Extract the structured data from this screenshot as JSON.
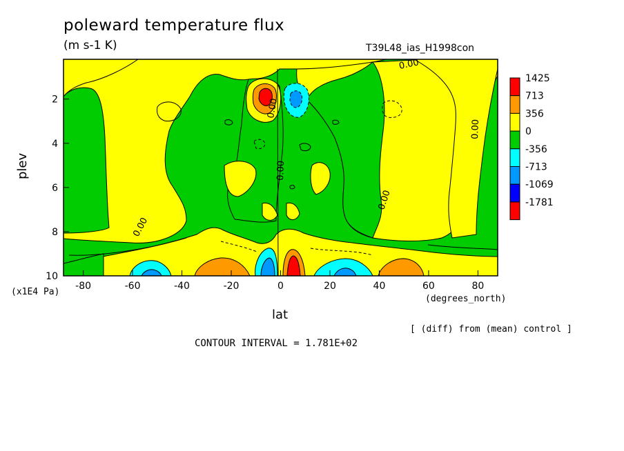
{
  "chart_data": {
    "type": "heatmap",
    "title": "poleward temperature flux",
    "units": "(m s-1 K)",
    "run_label": "T39L48_ias_H1998con",
    "xlabel": "lat",
    "x_units": "(degrees_north)",
    "ylabel": "plev",
    "y_units": "(x1E4 Pa)",
    "xlim": [
      -88,
      88
    ],
    "ylim": [
      0.2,
      10
    ],
    "y_inverted": true,
    "x_ticks": [
      -80,
      -60,
      -40,
      -20,
      0,
      20,
      40,
      60,
      80
    ],
    "y_ticks": [
      2,
      4,
      6,
      8,
      10
    ],
    "note": "[ (diff) from (mean) control ]",
    "contour_interval_text": "CONTOUR INTERVAL = 1.781E+02",
    "contour_labels": [
      "0.00",
      "0.00",
      "0.00",
      "0.00",
      "0.00",
      "0.00"
    ],
    "colorbar": {
      "levels": [
        "1425",
        "713",
        "356",
        "0",
        "-356",
        "-713",
        "-1069",
        "-1781"
      ],
      "colors": [
        "#ff0000",
        "#ff9900",
        "#ffff00",
        "#00cc00",
        "#00ffff",
        "#0099ff",
        "#0000ff",
        "#ff0000"
      ]
    },
    "features": [
      {
        "lat": -6,
        "plev": 1.9,
        "sign": "positive",
        "level": 1425
      },
      {
        "lat": 6,
        "plev": 2.0,
        "sign": "negative",
        "level": -713
      },
      {
        "lat": 5,
        "plev": 9.5,
        "sign": "positive",
        "level": 1425
      },
      {
        "lat": -7,
        "plev": 9.3,
        "sign": "negative",
        "level": -713
      },
      {
        "lat": -23,
        "plev": 9.6,
        "sign": "positive",
        "level": 713
      },
      {
        "lat": 24,
        "plev": 9.6,
        "sign": "negative",
        "level": -713
      },
      {
        "lat": -50,
        "plev": 9.6,
        "sign": "negative",
        "level": -713
      },
      {
        "lat": 47,
        "plev": 9.6,
        "sign": "positive",
        "level": 713
      }
    ]
  }
}
